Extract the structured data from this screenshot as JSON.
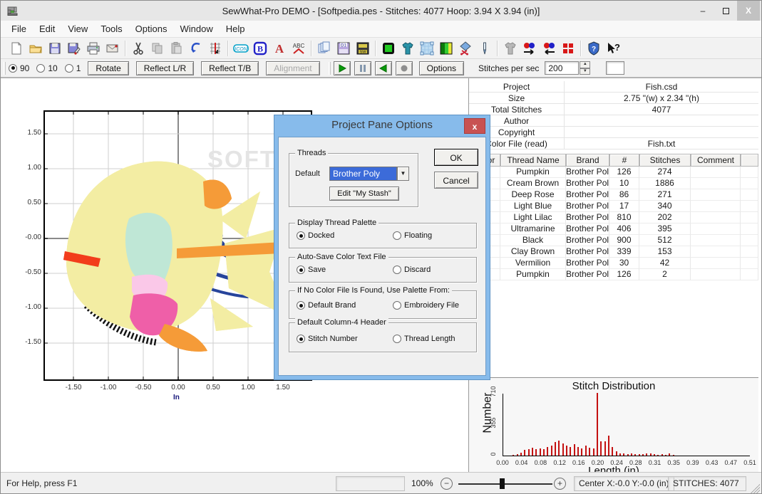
{
  "window": {
    "title": "SewWhat-Pro DEMO - [Softpedia.pes - Stitches: 4077  Hoop: 3.94 X 3.94 (in)]",
    "controls": {
      "minimize": "–",
      "maximize": "□",
      "close": "X"
    }
  },
  "menu": {
    "items": [
      "File",
      "Edit",
      "View",
      "Tools",
      "Options",
      "Window",
      "Help"
    ]
  },
  "toolbar_main": {
    "icons": [
      "new-document",
      "open-folder",
      "save",
      "save-as",
      "print",
      "email",
      "cut",
      "copy",
      "paste",
      "undo",
      "hoop-grid",
      "icon-manager",
      "bold-b",
      "font-a",
      "spell-abc",
      "copy-pages",
      "d1-floppy",
      "sw-floppy",
      "hoop-green",
      "tshirt-blue",
      "hoop-fabric",
      "color-bars",
      "applique-scissors",
      "needle-pen",
      "tshirt-gray",
      "color-sort-right",
      "color-sort-left",
      "red-squares",
      "shield-help",
      "context-help"
    ]
  },
  "toolbar_sew": {
    "angles": [
      {
        "label": "90",
        "selected": true
      },
      {
        "label": "10",
        "selected": false
      },
      {
        "label": "1",
        "selected": false
      }
    ],
    "rotate": "Rotate",
    "reflect_lr": "Reflect L/R",
    "reflect_tb": "Reflect T/B",
    "alignment": "Alignment",
    "playback_icons": [
      "play",
      "pause",
      "rewind",
      "stop"
    ],
    "options": "Options",
    "sps_label": "Stitches per sec",
    "sps_value": "200"
  },
  "canvas": {
    "y_ticks": [
      "1.50",
      "1.00",
      "0.50",
      "-0.00",
      "-0.50",
      "-1.00",
      "-1.50"
    ],
    "x_ticks": [
      "-1.50",
      "-1.00",
      "-0.50",
      "0.00",
      "0.50",
      "1.00",
      "1.50"
    ],
    "axis_unit": "In",
    "watermark": "SOFTPEDIA"
  },
  "project_pane": {
    "rows": [
      {
        "label": "Project",
        "value": "Fish.csd"
      },
      {
        "label": "Size",
        "value": "2.75 \"(w) x 2.34 \"(h)"
      },
      {
        "label": "Total Stitches",
        "value": "4077"
      },
      {
        "label": "Author",
        "value": ""
      },
      {
        "label": "Copyright",
        "value": ""
      },
      {
        "label": "Color File (read)",
        "value": "Fish.txt"
      }
    ]
  },
  "thread_table": {
    "headers": [
      "Color",
      "Thread Name",
      "Brand",
      "#",
      "Stitches",
      "Comment"
    ],
    "rows": [
      {
        "color": "#F6A83C",
        "name": "Pumpkin",
        "brand": "Brother Poly",
        "num": "126",
        "stitches": "274",
        "comment": ""
      },
      {
        "color": "#F6F2A5",
        "name": "Cream Brown",
        "brand": "Brother Poly",
        "num": "10",
        "stitches": "1886",
        "comment": ""
      },
      {
        "color": "#F263AC",
        "name": "Deep Rose",
        "brand": "Brother Poly",
        "num": "86",
        "stitches": "271",
        "comment": ""
      },
      {
        "color": "#BCE7D3",
        "name": "Light Blue",
        "brand": "Brother Poly",
        "num": "17",
        "stitches": "340",
        "comment": ""
      },
      {
        "color": "#FAC8E8",
        "name": "Light Lilac",
        "brand": "Brother Poly",
        "num": "810",
        "stitches": "202",
        "comment": ""
      },
      {
        "color": "#1C3E95",
        "name": "Ultramarine",
        "brand": "Brother Poly",
        "num": "406",
        "stitches": "395",
        "comment": ""
      },
      {
        "color": "#000000",
        "name": "Black",
        "brand": "Brother Poly",
        "num": "900",
        "stitches": "512",
        "comment": ""
      },
      {
        "color": "#F4670F",
        "name": "Clay Brown",
        "brand": "Brother Poly",
        "num": "339",
        "stitches": "153",
        "comment": ""
      },
      {
        "color": "#F2361B",
        "name": "Vermilion",
        "brand": "Brother Poly",
        "num": "30",
        "stitches": "42",
        "comment": ""
      },
      {
        "color": "#F6A83C",
        "name": "Pumpkin",
        "brand": "Brother Poly",
        "num": "126",
        "stitches": "2",
        "comment": ""
      }
    ]
  },
  "chart_data": {
    "type": "bar",
    "title": "Stitch Distribution",
    "xlabel": "Length (in)",
    "ylabel": "Number",
    "ylim": [
      0,
      710
    ],
    "yticks": [
      "0",
      "355",
      "710"
    ],
    "xticks": [
      "0.00",
      "0.04",
      "0.08",
      "0.12",
      "0.16",
      "0.20",
      "0.24",
      "0.28",
      "0.31",
      "0.35",
      "0.39",
      "0.43",
      "0.47",
      "0.51"
    ],
    "bar_color": "#C41111",
    "x": [
      0.02,
      0.028,
      0.036,
      0.044,
      0.052,
      0.06,
      0.068,
      0.076,
      0.084,
      0.092,
      0.1,
      0.108,
      0.116,
      0.124,
      0.132,
      0.14,
      0.148,
      0.156,
      0.164,
      0.172,
      0.18,
      0.188,
      0.196,
      0.204,
      0.212,
      0.22,
      0.228,
      0.236,
      0.244,
      0.252,
      0.26,
      0.268,
      0.276,
      0.284,
      0.292,
      0.3,
      0.308,
      0.316,
      0.324,
      0.332,
      0.34,
      0.348,
      0.356
    ],
    "n": [
      10,
      18,
      30,
      65,
      75,
      90,
      70,
      80,
      72,
      95,
      115,
      150,
      170,
      140,
      115,
      100,
      130,
      95,
      85,
      110,
      90,
      78,
      710,
      165,
      160,
      230,
      95,
      48,
      28,
      22,
      20,
      26,
      16,
      20,
      15,
      22,
      24,
      14,
      10,
      18,
      12,
      24,
      10
    ]
  },
  "dialog": {
    "title": "Project Pane Options",
    "close": "x",
    "ok": "OK",
    "cancel": "Cancel",
    "threads": {
      "label": "Threads",
      "default_label": "Default",
      "dropdown_value": "Brother Poly",
      "edit_button": "Edit \"My Stash\""
    },
    "display_palette": {
      "label": "Display Thread Palette",
      "opt1": "Docked",
      "opt2": "Floating"
    },
    "autosave": {
      "label": "Auto-Save Color Text File",
      "opt1": "Save",
      "opt2": "Discard"
    },
    "no_color": {
      "label": "If No Color File Is Found, Use Palette From:",
      "opt1": "Default Brand",
      "opt2": "Embroidery File"
    },
    "col4": {
      "label": "Default Column-4 Header",
      "opt1": "Stitch Number",
      "opt2": "Thread Length"
    }
  },
  "status_bar": {
    "help_text": "For Help, press F1",
    "zoom": "100%",
    "minus": "−",
    "plus": "+",
    "center": "Center X:-0.0 Y:-0.0 (in)",
    "stitches": "STITCHES:  4077"
  }
}
